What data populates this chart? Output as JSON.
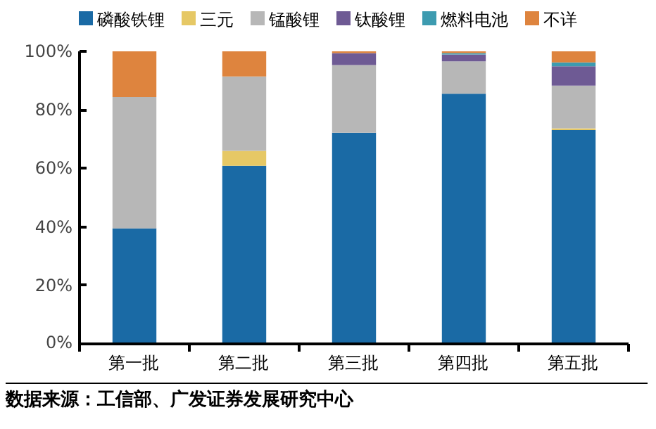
{
  "chart_data": {
    "type": "bar",
    "stacked": true,
    "categories": [
      "第一批",
      "第二批",
      "第三批",
      "第四批",
      "第五批"
    ],
    "series": [
      {
        "name": "磷酸铁锂",
        "color": "#1a6aa5",
        "values": [
          39.5,
          60.9,
          72.2,
          85.5,
          73.1
        ]
      },
      {
        "name": "三元",
        "color": "#e6c865",
        "values": [
          0,
          5.1,
          0,
          0,
          0.6
        ]
      },
      {
        "name": "锰酸锂",
        "color": "#b7b7b7",
        "values": [
          44.9,
          25.4,
          23.1,
          11.1,
          14.6
        ]
      },
      {
        "name": "钛酸锂",
        "color": "#6e5a94",
        "values": [
          0,
          0,
          4.1,
          2.3,
          6.6
        ]
      },
      {
        "name": "燃料电池",
        "color": "#3d9bb0",
        "values": [
          0,
          0,
          0,
          0.5,
          1.3
        ]
      },
      {
        "name": "不详",
        "color": "#de843e",
        "values": [
          15.6,
          8.6,
          0.6,
          0.6,
          3.8
        ]
      }
    ],
    "ylim": [
      0,
      100
    ],
    "yticks": [
      {
        "value": 0,
        "label": "0%"
      },
      {
        "value": 20,
        "label": "20%"
      },
      {
        "value": 40,
        "label": "40%"
      },
      {
        "value": 60,
        "label": "60%"
      },
      {
        "value": 80,
        "label": "80%"
      },
      {
        "value": 100,
        "label": "100%"
      }
    ],
    "grid": false,
    "legend": "top",
    "annotations": [
      "数据来源：工信部、广发证券发展研究中心"
    ]
  }
}
